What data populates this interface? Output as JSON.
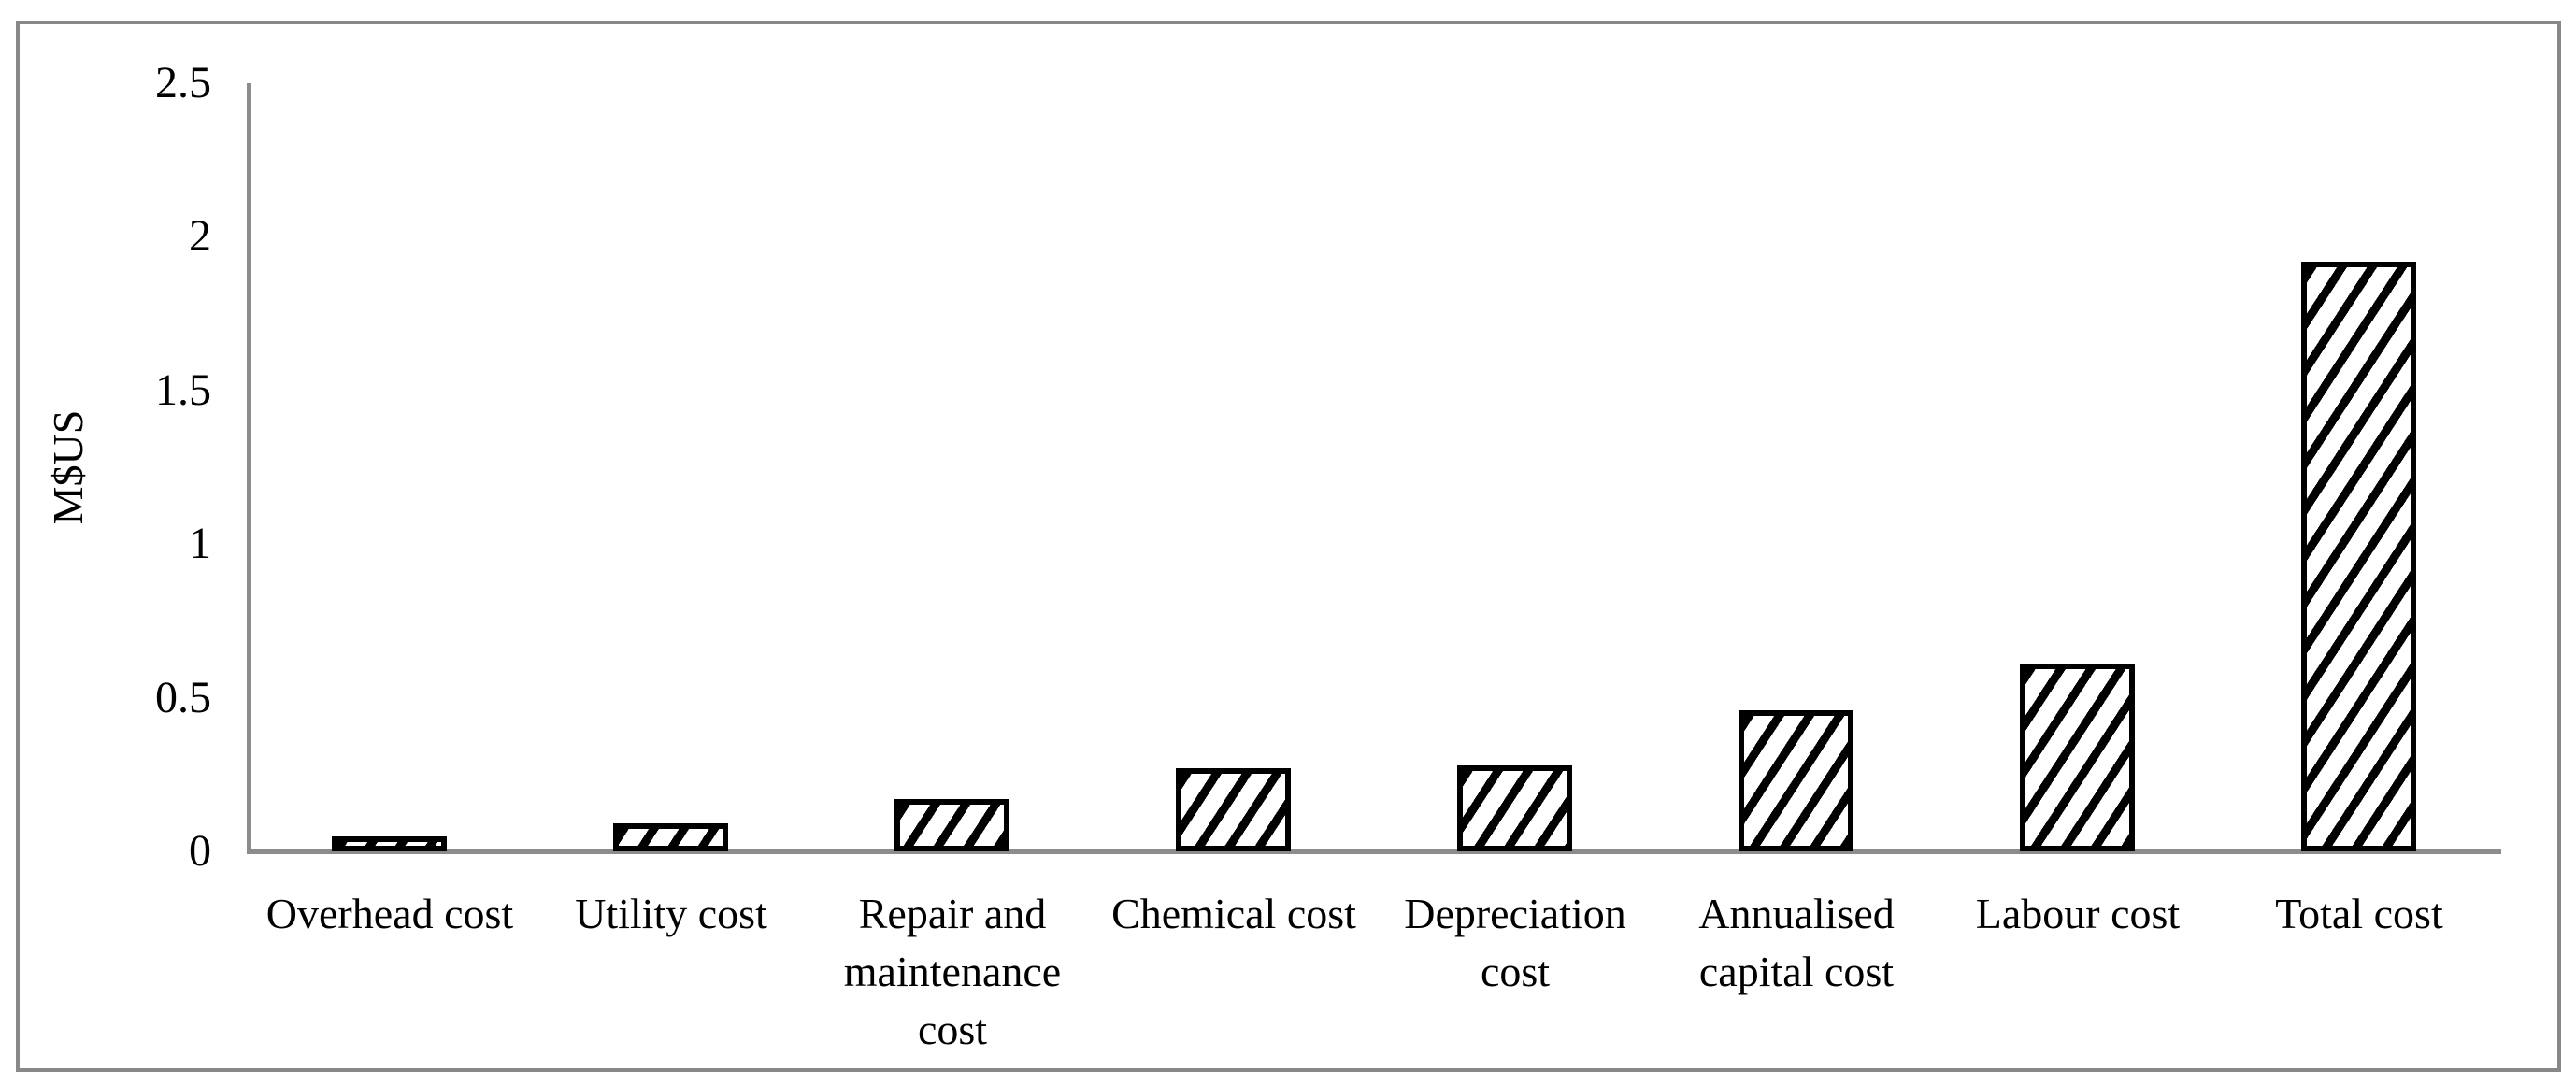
{
  "chart_data": {
    "type": "bar",
    "title": "",
    "xlabel": "",
    "ylabel": "M$US",
    "categories": [
      "Overhead cost",
      "Utility cost",
      "Repair and maintenance cost",
      "Chemical cost",
      "Depreciation cost",
      "Annualised capital cost",
      "Labour cost",
      "Total cost"
    ],
    "category_label_lines": [
      [
        "Overhead cost"
      ],
      [
        "Utility cost"
      ],
      [
        "Repair and",
        "maintenance",
        "cost"
      ],
      [
        "Chemical cost"
      ],
      [
        "Depreciation",
        "cost"
      ],
      [
        "Annualised",
        "capital cost"
      ],
      [
        "Labour cost"
      ],
      [
        "Total cost"
      ]
    ],
    "values": [
      0.05,
      0.09,
      0.17,
      0.27,
      0.28,
      0.46,
      0.61,
      1.92
    ],
    "ylim": [
      0,
      2.5
    ],
    "y_ticks": [
      "0",
      "0.5",
      "1",
      "1.5",
      "2",
      "2.5"
    ],
    "y_tick_values": [
      0,
      0.5,
      1,
      1.5,
      2,
      2.5
    ],
    "grid": "off",
    "legend": "none",
    "bar_style": "diagonal-hatch",
    "colors": {
      "bar_hatch": "#000000",
      "bar_background": "#ffffff",
      "axis": "#8c8c8c",
      "frame_border": "#888888",
      "text": "#000000"
    }
  }
}
